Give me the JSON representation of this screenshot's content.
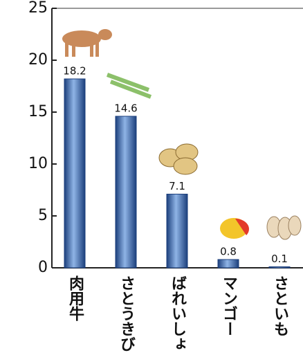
{
  "chart_data": {
    "type": "bar",
    "categories": [
      "肉用牛",
      "さとうきび",
      "ばれいしょ",
      "マンゴー",
      "さといも"
    ],
    "values": [
      18.2,
      14.6,
      7.1,
      0.8,
      0.1
    ],
    "color": "#3a6ab0",
    "ylim": [
      0,
      25
    ],
    "yticks": [
      0,
      5,
      10,
      15,
      20,
      25
    ]
  }
}
